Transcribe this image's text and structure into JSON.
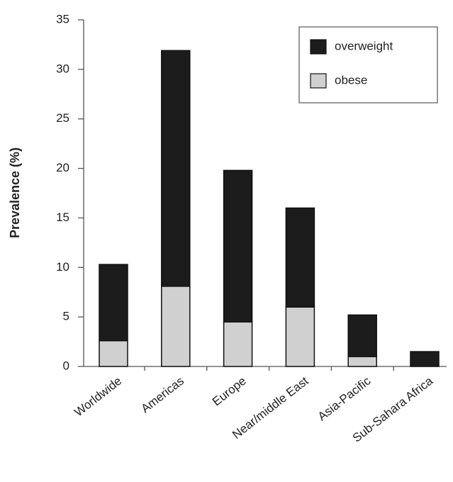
{
  "chart_data": {
    "type": "stacked-bar",
    "y_label": "Prevalence (%)",
    "categories": [
      "Worldwide",
      "Americas",
      "Europe",
      "Near/middle East",
      "Asia-Pacific",
      "Sub-Sahara Africa"
    ],
    "series": [
      {
        "name": "obese",
        "color": "#d0d0d0",
        "values": [
          2.6,
          8.1,
          4.5,
          6.0,
          1.0,
          0
        ]
      },
      {
        "name": "overweight",
        "color": "#1c1c1c",
        "values": [
          7.7,
          23.8,
          15.3,
          10.0,
          4.2,
          1.5
        ]
      }
    ],
    "ylim": [
      0,
      35
    ],
    "yticks": [
      0,
      5,
      10,
      15,
      20,
      25,
      30,
      35
    ],
    "grid": false,
    "legend": "top-right"
  }
}
